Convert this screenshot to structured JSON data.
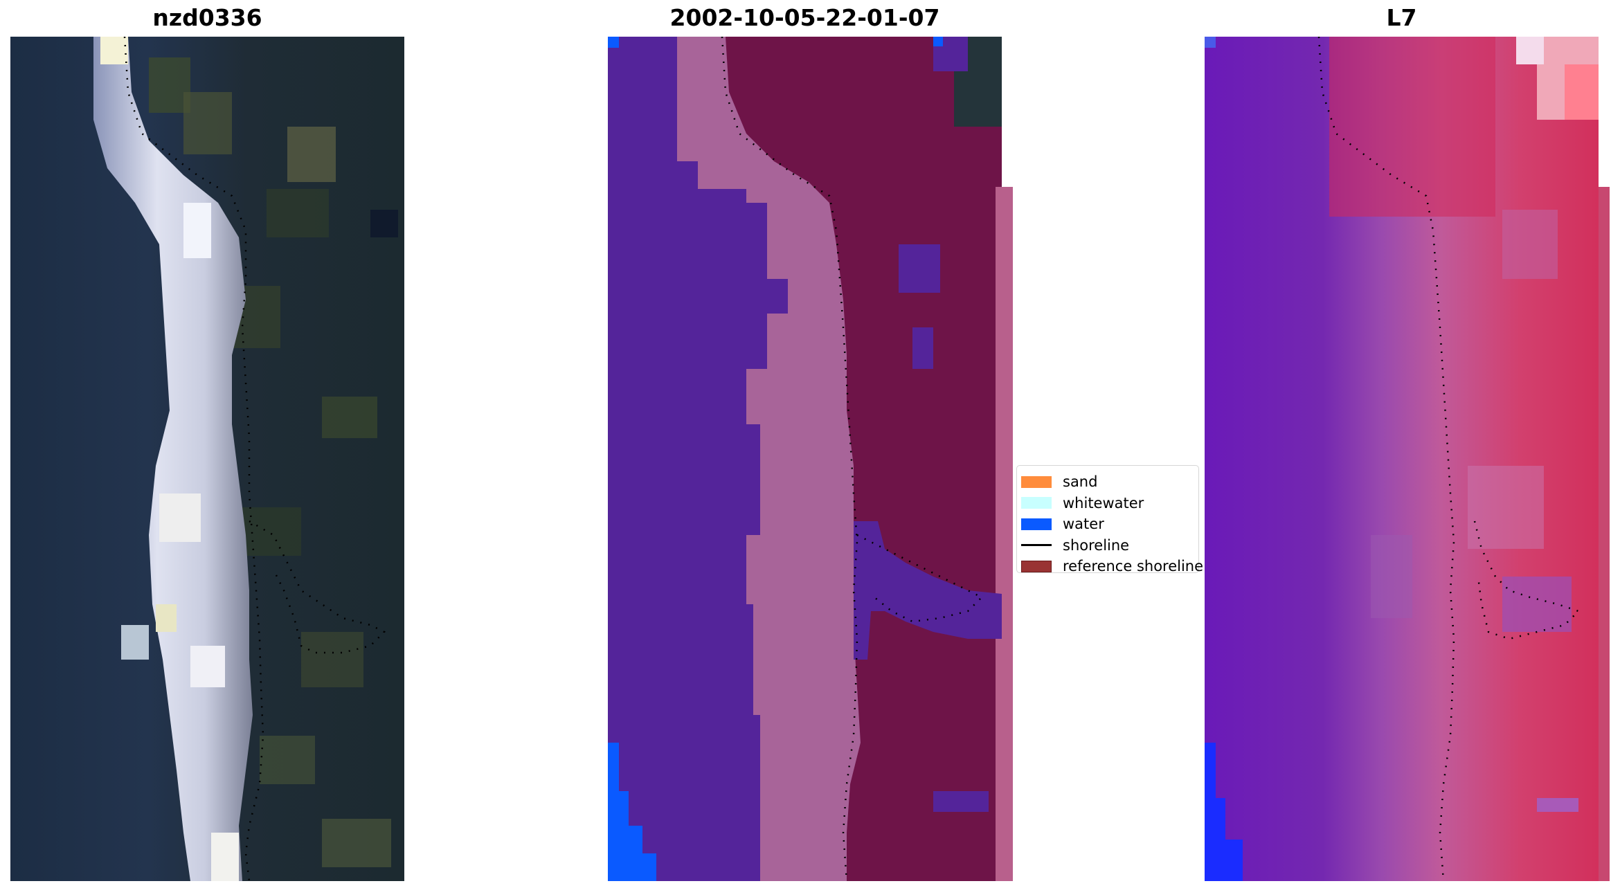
{
  "panels": [
    {
      "title": "nzd0336",
      "kind": "rgb-image"
    },
    {
      "title": "2002-10-05-22-01-07",
      "kind": "classification-image"
    },
    {
      "title": "L7",
      "kind": "index-image"
    }
  ],
  "legend": {
    "items": [
      {
        "label": "sand",
        "type": "patch",
        "color": "#ff8c3c"
      },
      {
        "label": "whitewater",
        "type": "patch",
        "color": "#c8ffff"
      },
      {
        "label": "water",
        "type": "patch",
        "color": "#0a5aff"
      },
      {
        "label": "shoreline",
        "type": "line",
        "color": "#000000"
      },
      {
        "label": "reference shoreline",
        "type": "patch",
        "color": "#993333"
      }
    ]
  },
  "colors": {
    "water_class": "#0a5aff",
    "ocean_overlay": "#54249a",
    "sand_overlay": "#a86499",
    "land_overlay": "#6e1448",
    "nir_water": "#6a1ab8",
    "nir_land": "#d2305c"
  }
}
